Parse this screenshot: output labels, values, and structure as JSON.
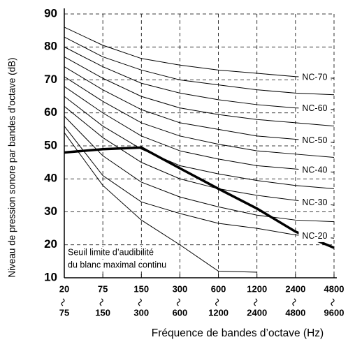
{
  "chart_data": {
    "type": "line",
    "y_label": "Niveau de pression sonore par bandes d’octave (dB)",
    "x_label": "Fréquence de bandes d’octave (Hz)",
    "categories": [
      {
        "from": "20",
        "to": "75"
      },
      {
        "from": "75",
        "to": "150"
      },
      {
        "from": "150",
        "to": "300"
      },
      {
        "from": "300",
        "to": "600"
      },
      {
        "from": "600",
        "to": "1200"
      },
      {
        "from": "1200",
        "to": "2400"
      },
      {
        "from": "2400",
        "to": "4800"
      },
      {
        "from": "4800",
        "to": "9600"
      }
    ],
    "ylim": [
      10,
      90
    ],
    "yticks": [
      10,
      20,
      30,
      40,
      50,
      60,
      70,
      80,
      90
    ],
    "grid": true,
    "series": [
      {
        "name": "NC-70",
        "color": "#000000",
        "line_width": 1,
        "values": [
          86,
          80.5,
          76.5,
          74.5,
          73,
          72,
          71,
          70.5
        ]
      },
      {
        "color": "#000000",
        "line_width": 1,
        "values": [
          83,
          77,
          73,
          70,
          68.5,
          67,
          66,
          65.5
        ]
      },
      {
        "name": "NC-60",
        "color": "#000000",
        "line_width": 1,
        "values": [
          80,
          74,
          69,
          66,
          64,
          62.5,
          61.5,
          61
        ]
      },
      {
        "color": "#000000",
        "line_width": 1,
        "values": [
          77,
          70.5,
          65,
          61.5,
          59.5,
          58,
          57,
          56
        ]
      },
      {
        "name": "NC-50",
        "color": "#000000",
        "line_width": 1,
        "values": [
          74,
          67,
          61,
          57,
          55,
          53,
          52,
          51
        ]
      },
      {
        "color": "#000000",
        "line_width": 1,
        "values": [
          71,
          63.5,
          57,
          53,
          50.5,
          48.5,
          47.5,
          46.5
        ]
      },
      {
        "name": "NC-40",
        "color": "#000000",
        "line_width": 1,
        "values": [
          68,
          60,
          53,
          48.5,
          46,
          44,
          43,
          42
        ]
      },
      {
        "color": "#000000",
        "line_width": 1,
        "values": [
          65,
          56,
          49,
          44,
          41.5,
          39.5,
          38,
          37
        ]
      },
      {
        "name": "NC-30",
        "color": "#000000",
        "line_width": 1,
        "values": [
          62,
          52.5,
          45,
          40,
          37,
          35,
          33.5,
          32
        ]
      },
      {
        "color": "#000000",
        "line_width": 1,
        "values": [
          59,
          47,
          39,
          34.5,
          31.5,
          29,
          27.5,
          27
        ]
      },
      {
        "name": "NC-20",
        "color": "#000000",
        "line_width": 1,
        "values": [
          56,
          41,
          33,
          29.5,
          26.5,
          25,
          23,
          22
        ]
      },
      {
        "color": "#000000",
        "line_width": 1,
        "values": [
          54,
          38,
          27.5,
          20,
          12,
          11.7,
          null,
          null
        ]
      },
      {
        "color": "#000000",
        "line_width": 3.5,
        "values": [
          48,
          49,
          49.5,
          43.2,
          37,
          31,
          24,
          19.1
        ]
      }
    ],
    "annotation": [
      "Seuil limite d’audibilité",
      "du blanc maximal continu"
    ]
  }
}
